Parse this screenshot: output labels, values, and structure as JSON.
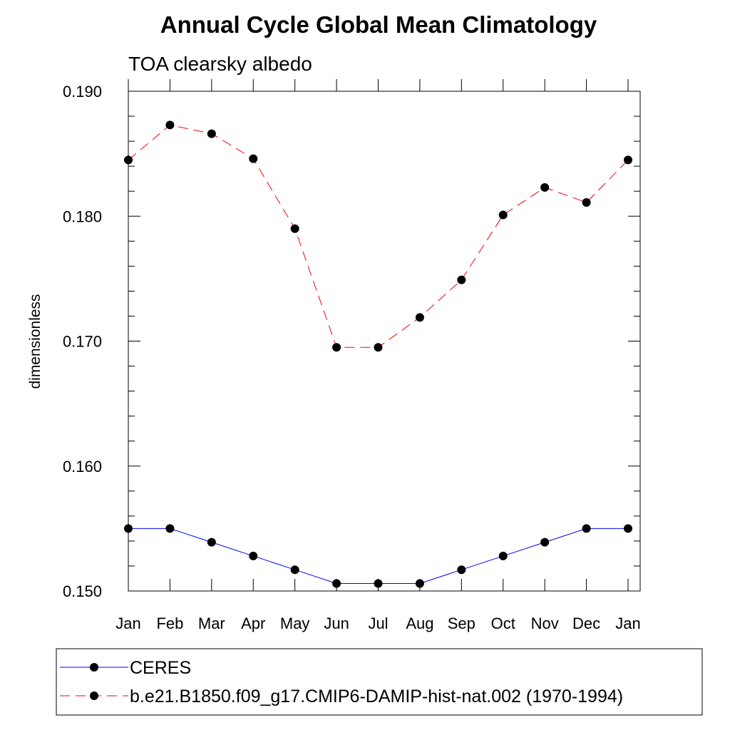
{
  "chart_data": {
    "type": "line",
    "title": "Annual Cycle Global Mean Climatology",
    "subtitle": "TOA clearsky albedo",
    "ylabel": "dimensionless",
    "xlabel": "",
    "categories": [
      "Jan",
      "Feb",
      "Mar",
      "Apr",
      "May",
      "Jun",
      "Jul",
      "Aug",
      "Sep",
      "Oct",
      "Nov",
      "Dec",
      "Jan"
    ],
    "ylim": [
      0.15,
      0.19
    ],
    "yticks": [
      "0.150",
      "0.160",
      "0.170",
      "0.180",
      "0.190"
    ],
    "series": [
      {
        "name": "CERES",
        "color": "#0000ff",
        "line_style": "solid",
        "marker": "filled-circle",
        "values": [
          0.155,
          0.155,
          0.1539,
          0.1528,
          0.1517,
          0.1506,
          0.1506,
          0.1506,
          0.1517,
          0.1528,
          0.1539,
          0.155,
          0.155
        ]
      },
      {
        "name": "b.e21.B1850.f09_g17.CMIP6-DAMIP-hist-nat.002 (1970-1994)",
        "color": "#ff0000",
        "line_style": "dashed",
        "marker": "filled-circle",
        "values": [
          0.1845,
          0.1873,
          0.1866,
          0.1846,
          0.179,
          0.1695,
          0.1695,
          0.1719,
          0.1749,
          0.1801,
          0.1823,
          0.1811,
          0.1845
        ]
      }
    ],
    "grid": false,
    "legend_position": "bottom"
  }
}
